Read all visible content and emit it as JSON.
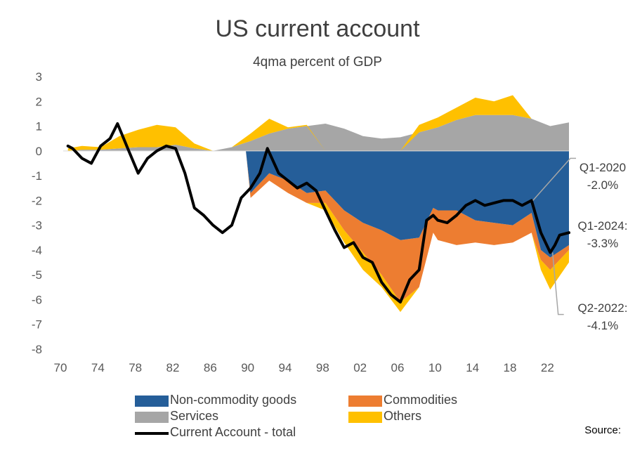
{
  "chart_data": {
    "type": "area",
    "title": "US current account",
    "subtitle": "4qma percent of GDP",
    "ylim": [
      -8,
      3
    ],
    "yticks": [
      3,
      2,
      1,
      0,
      -1,
      -2,
      -3,
      -4,
      -5,
      -6,
      -7,
      -8
    ],
    "xlim": [
      1970,
      2024
    ],
    "xticks": [
      "70",
      "74",
      "78",
      "82",
      "86",
      "90",
      "94",
      "98",
      "02",
      "06",
      "10",
      "14",
      "18",
      "22"
    ],
    "grid": false,
    "legend_position": "bottom",
    "series": [
      {
        "name": "Services",
        "color": "#a6a6a6",
        "x": [
          1970.5,
          1972,
          1974,
          1976,
          1978,
          1980,
          1982,
          1984,
          1986,
          1988,
          1990,
          1992,
          1994,
          1996,
          1998,
          2000,
          2002,
          2004,
          2006,
          2008,
          2010,
          2012,
          2014,
          2016,
          2018,
          2020,
          2022,
          2024
        ],
        "y": [
          0.0,
          0.05,
          0.05,
          0.1,
          0.15,
          0.15,
          0.25,
          0.1,
          0.0,
          0.15,
          0.4,
          0.7,
          0.9,
          1.0,
          1.1,
          0.9,
          0.6,
          0.5,
          0.55,
          0.75,
          0.95,
          1.25,
          1.45,
          1.45,
          1.45,
          1.3,
          1.0,
          1.15
        ]
      },
      {
        "name": "Others",
        "color": "#ffc000",
        "x": [
          1970.5,
          1972,
          1974,
          1976,
          1978,
          1980,
          1982,
          1984,
          1986,
          1988,
          1990,
          1992,
          1994,
          1996,
          1998,
          2000,
          2002,
          2004,
          2006,
          2008,
          2010,
          2012,
          2014,
          2016,
          2018,
          2020,
          2022,
          2024
        ],
        "y": [
          0.1,
          0.15,
          0.1,
          0.5,
          0.7,
          0.9,
          0.7,
          0.2,
          0.0,
          0.0,
          0.3,
          0.6,
          0.05,
          0.05,
          -0.3,
          -0.5,
          -0.7,
          -0.5,
          -0.4,
          0.3,
          0.4,
          0.5,
          0.7,
          0.55,
          0.8,
          0.0,
          -0.8,
          -0.5
        ]
      },
      {
        "name": "Non-commodity goods",
        "color": "#255e99",
        "x": [
          1989.5,
          1990,
          1992,
          1994,
          1996,
          1998,
          2000,
          2002,
          2004,
          2006,
          2008,
          2009.5,
          2010,
          2012,
          2014,
          2016,
          2018,
          2020,
          2021,
          2022,
          2024
        ],
        "y": [
          0.0,
          -1.7,
          -0.9,
          -1.2,
          -1.7,
          -1.6,
          -2.4,
          -2.9,
          -3.2,
          -3.6,
          -3.5,
          -2.3,
          -2.4,
          -2.4,
          -2.8,
          -2.9,
          -3.0,
          -2.5,
          -4.0,
          -4.3,
          -3.8
        ]
      },
      {
        "name": "Commodities",
        "color": "#ed7d31",
        "x": [
          1989.5,
          1990,
          1992,
          1994,
          1996,
          1998,
          2000,
          2002,
          2004,
          2006,
          2008,
          2009.5,
          2010,
          2012,
          2014,
          2016,
          2018,
          2020,
          2021,
          2022,
          2024
        ],
        "y": [
          0.0,
          -0.2,
          -0.3,
          -0.5,
          -0.4,
          -0.5,
          -0.8,
          -1.2,
          -1.8,
          -2.5,
          -2.0,
          -1.0,
          -1.2,
          -1.4,
          -0.9,
          -0.9,
          -0.7,
          -0.8,
          -0.4,
          -0.5,
          -0.2
        ]
      },
      {
        "name": "Current Account - total",
        "color": "#000000",
        "x": [
          1970.5,
          1971,
          1972,
          1973,
          1974,
          1975,
          1975.8,
          1977,
          1978,
          1979,
          1980,
          1981,
          1982,
          1983,
          1984,
          1985,
          1986,
          1987,
          1988,
          1989,
          1990,
          1991,
          1991.8,
          1993,
          1994,
          1995,
          1996,
          1997,
          1998,
          1999,
          2000,
          2001,
          2002,
          2003,
          2004,
          2005,
          2006,
          2007,
          2008,
          2008.8,
          2009.5,
          2010,
          2011,
          2012,
          2013,
          2014,
          2015,
          2016,
          2017,
          2018,
          2019,
          2020,
          2021,
          2022,
          2022.5,
          2023,
          2024
        ],
        "y": [
          0.2,
          0.1,
          -0.3,
          -0.5,
          0.2,
          0.5,
          1.1,
          0.0,
          -0.9,
          -0.3,
          0.0,
          0.2,
          0.1,
          -0.9,
          -2.3,
          -2.6,
          -3.0,
          -3.3,
          -3.0,
          -1.9,
          -1.5,
          -0.9,
          0.1,
          -0.9,
          -1.2,
          -1.5,
          -1.3,
          -1.6,
          -2.4,
          -3.2,
          -3.9,
          -3.7,
          -4.3,
          -4.5,
          -5.3,
          -5.8,
          -6.1,
          -5.2,
          -4.8,
          -2.8,
          -2.6,
          -2.8,
          -2.9,
          -2.6,
          -2.2,
          -2.0,
          -2.2,
          -2.1,
          -2.0,
          -2.0,
          -2.2,
          -2.0,
          -3.3,
          -4.1,
          -3.8,
          -3.4,
          -3.3
        ]
      }
    ],
    "annotations": [
      {
        "label": "Q1-2020",
        "value_text": "-2.0%",
        "x": 2020.0,
        "y": -2.0
      },
      {
        "label": "Q1-2024:",
        "value_text": "-3.3%",
        "x": 2024.0,
        "y": -3.3
      },
      {
        "label": "Q2-2022:",
        "value_text": "-4.1%",
        "x": 2022.25,
        "y": -4.1
      }
    ]
  },
  "legend": {
    "items": [
      {
        "label": "Non-commodity goods",
        "color": "#255e99",
        "kind": "box"
      },
      {
        "label": "Commodities",
        "color": "#ed7d31",
        "kind": "box"
      },
      {
        "label": "Services",
        "color": "#a6a6a6",
        "kind": "box"
      },
      {
        "label": "Others",
        "color": "#ffc000",
        "kind": "box"
      },
      {
        "label": "Current Account - total",
        "color": "#000000",
        "kind": "line"
      }
    ]
  },
  "source_label": "Source:"
}
